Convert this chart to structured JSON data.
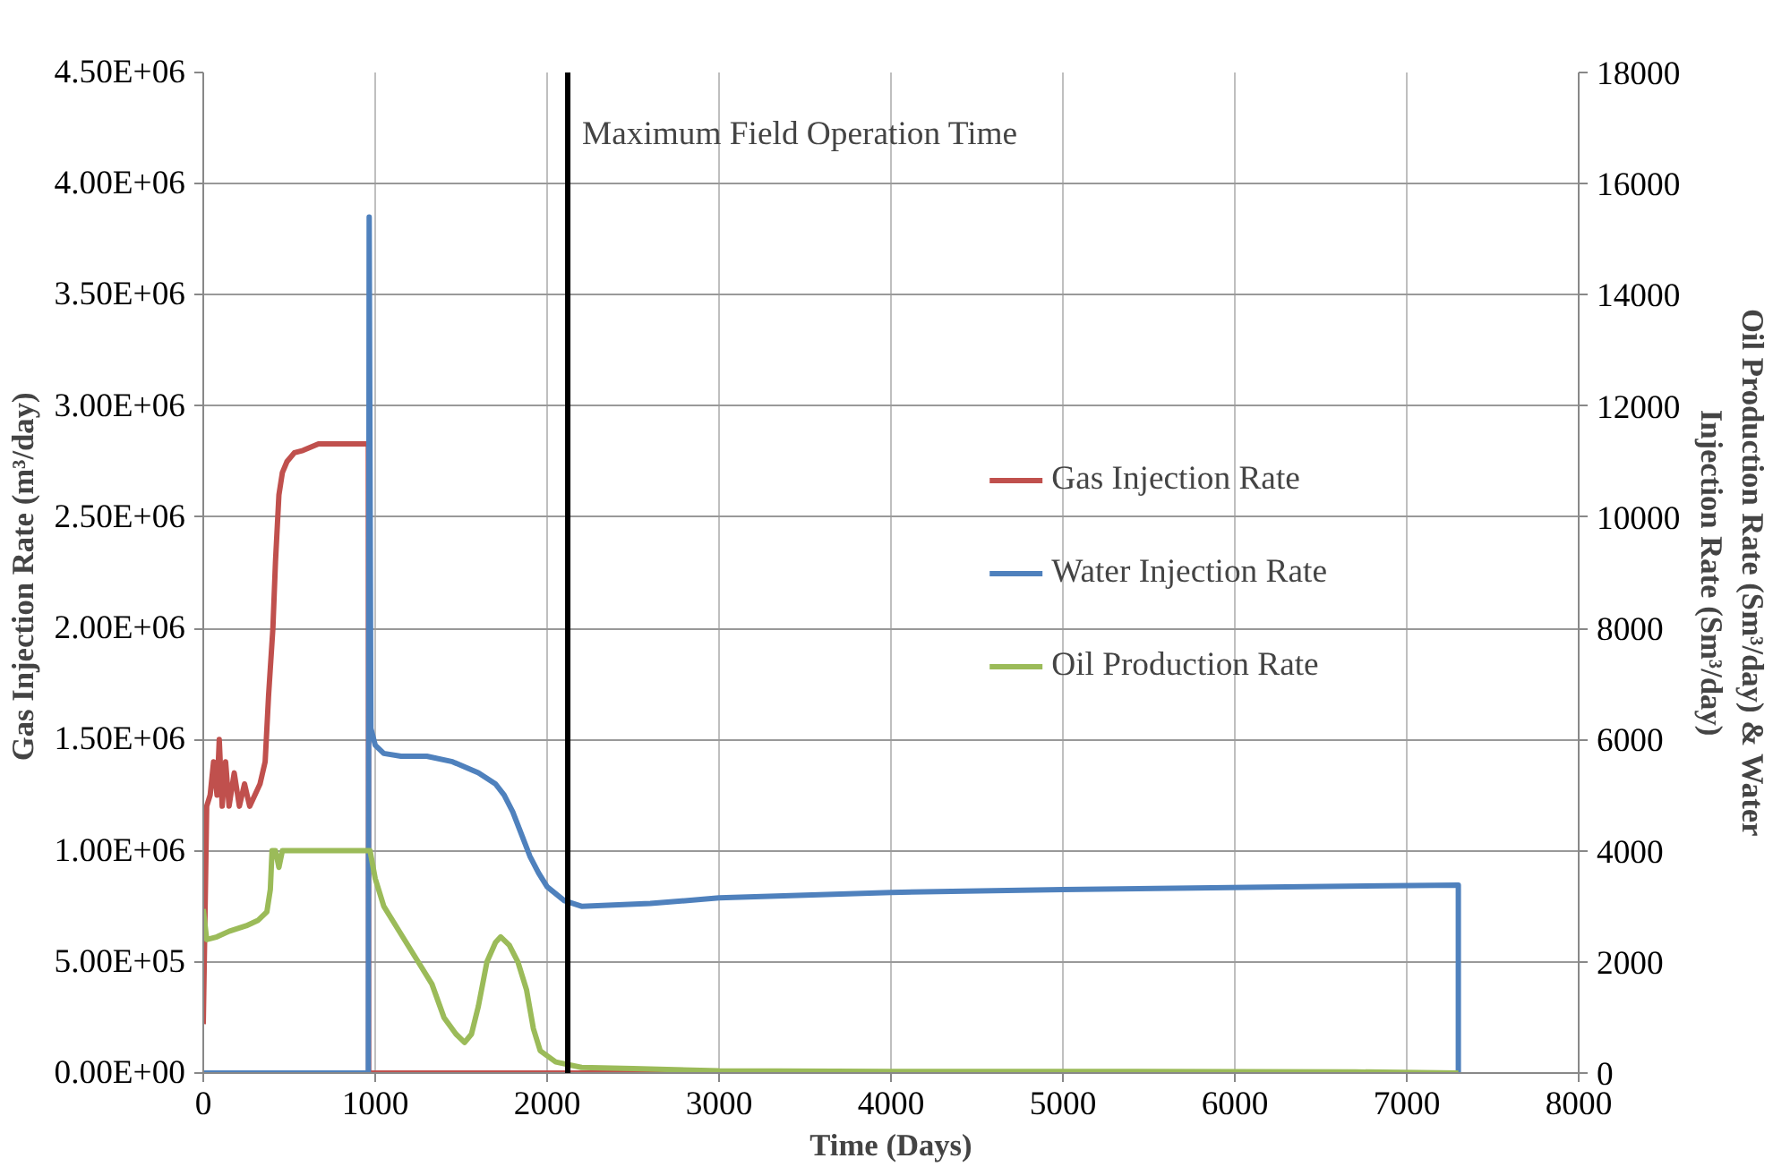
{
  "chart_data": {
    "type": "line",
    "xlabel": "Time (Days)",
    "ylabel": "Gas Injection  Rate (m³/day)",
    "y2label": "Oil Production Rate (Sm³/day) & Water Injection Rate (Sm³/day)",
    "xlim": [
      0,
      8000
    ],
    "xticks": [
      0,
      1000,
      2000,
      3000,
      4000,
      5000,
      6000,
      7000,
      8000
    ],
    "ylim": [
      0,
      4500000
    ],
    "yticks": [
      {
        "value": 0,
        "label": "0.00E+00"
      },
      {
        "value": 500000,
        "label": "5.00E+05"
      },
      {
        "value": 1000000,
        "label": "1.00E+06"
      },
      {
        "value": 1500000,
        "label": "1.50E+06"
      },
      {
        "value": 2000000,
        "label": "2.00E+06"
      },
      {
        "value": 2500000,
        "label": "2.50E+06"
      },
      {
        "value": 3000000,
        "label": "3.00E+06"
      },
      {
        "value": 3500000,
        "label": "3.50E+06"
      },
      {
        "value": 4000000,
        "label": "4.00E+06"
      },
      {
        "value": 4500000,
        "label": "4.50E+06"
      }
    ],
    "y2lim": [
      0,
      18000
    ],
    "y2ticks": [
      0,
      2000,
      4000,
      6000,
      8000,
      10000,
      12000,
      14000,
      16000,
      18000
    ],
    "grid": true,
    "legend": "right",
    "marker": "none",
    "line_style": "solid",
    "ref_lines": [
      {
        "axis": "x",
        "value": 2120,
        "label": "Maximum Field Operation Time",
        "color": "#000000"
      }
    ],
    "series": [
      {
        "name": "Gas Injection Rate",
        "color": "#c0504d",
        "x": [
          0,
          10,
          20,
          40,
          60,
          80,
          93,
          110,
          130,
          150,
          180,
          210,
          240,
          270,
          300,
          330,
          360,
          380,
          405,
          420,
          440,
          460,
          487,
          530,
          580,
          670,
          800,
          960,
          962,
          1500,
          2000,
          2500,
          3000
        ],
        "values": [
          220000,
          700000,
          1200000,
          1250000,
          1400000,
          1250000,
          1500000,
          1200000,
          1400000,
          1200000,
          1350000,
          1200000,
          1300000,
          1200000,
          1250000,
          1300000,
          1400000,
          1700000,
          2000000,
          2300000,
          2600000,
          2700000,
          2750000,
          2790000,
          2800000,
          2830000,
          2830000,
          2830000,
          0,
          0,
          0,
          0,
          0
        ]
      },
      {
        "name": "Water Injection Rate",
        "color": "#4f81bd",
        "axis": "y2",
        "x": [
          0,
          500,
          960,
          965,
          975,
          1000,
          1050,
          1150,
          1300,
          1450,
          1600,
          1700,
          1750,
          1800,
          1850,
          1900,
          1950,
          2000,
          2100,
          2200,
          2600,
          3000,
          3500,
          4000,
          5000,
          6300,
          7300,
          7300
        ],
        "values": [
          0,
          0,
          0,
          15400,
          6200,
          5900,
          5750,
          5700,
          5700,
          5600,
          5400,
          5200,
          5000,
          4700,
          4300,
          3900,
          3600,
          3350,
          3100,
          3000,
          3050,
          3150,
          3200,
          3250,
          3300,
          3350,
          3380,
          0
        ]
      },
      {
        "name": "Oil Production Rate",
        "color": "#9bbb59",
        "axis": "y2",
        "x": [
          0,
          20,
          80,
          150,
          250,
          320,
          370,
          390,
          400,
          420,
          440,
          460,
          600,
          970,
          1000,
          1050,
          1150,
          1250,
          1330,
          1400,
          1470,
          1520,
          1560,
          1600,
          1650,
          1700,
          1730,
          1780,
          1830,
          1880,
          1920,
          1960,
          2050,
          2200,
          2500,
          3000,
          4000,
          5000,
          6700,
          7300
        ],
        "values": [
          2950,
          2400,
          2450,
          2550,
          2650,
          2750,
          2900,
          3300,
          4000,
          4000,
          3700,
          4000,
          4000,
          4000,
          3500,
          3000,
          2500,
          2000,
          1600,
          1000,
          700,
          550,
          700,
          1200,
          2000,
          2350,
          2450,
          2300,
          2000,
          1500,
          800,
          400,
          200,
          100,
          80,
          40,
          30,
          30,
          20,
          0
        ]
      }
    ]
  }
}
